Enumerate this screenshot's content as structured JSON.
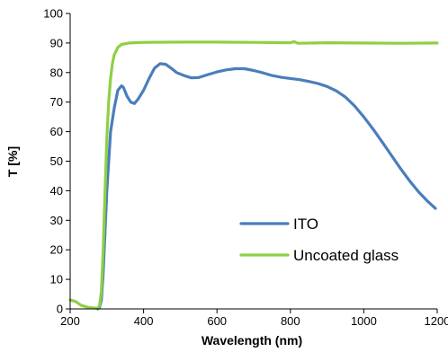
{
  "chart_data": {
    "type": "line",
    "xlabel": "Wavelength (nm)",
    "ylabel": "T [%]",
    "xlim": [
      200,
      1200
    ],
    "ylim": [
      0,
      100
    ],
    "xticks": [
      200,
      400,
      600,
      800,
      1000,
      1200
    ],
    "yticks": [
      0,
      10,
      20,
      30,
      40,
      50,
      60,
      70,
      80,
      90,
      100
    ],
    "xtick_labels": [
      "200",
      "400",
      "600",
      "800",
      "1000",
      "1200"
    ],
    "ytick_labels": [
      "0",
      "10",
      "20",
      "30",
      "40",
      "50",
      "60",
      "70",
      "80",
      "90",
      "100"
    ],
    "grid": false,
    "legend_position": "lower-right",
    "series": [
      {
        "name": "ITO",
        "color": "#4a7ebb",
        "points": [
          [
            275,
            0
          ],
          [
            280,
            0.5
          ],
          [
            285,
            3
          ],
          [
            290,
            12
          ],
          [
            300,
            40
          ],
          [
            310,
            60
          ],
          [
            320,
            68
          ],
          [
            330,
            74
          ],
          [
            340,
            75.5
          ],
          [
            345,
            75
          ],
          [
            355,
            72
          ],
          [
            365,
            70
          ],
          [
            375,
            69.5
          ],
          [
            385,
            71
          ],
          [
            400,
            74
          ],
          [
            415,
            78
          ],
          [
            430,
            81.5
          ],
          [
            445,
            83
          ],
          [
            460,
            82.8
          ],
          [
            475,
            81.5
          ],
          [
            490,
            80
          ],
          [
            510,
            79
          ],
          [
            530,
            78.2
          ],
          [
            550,
            78.3
          ],
          [
            575,
            79.3
          ],
          [
            600,
            80.2
          ],
          [
            625,
            80.9
          ],
          [
            650,
            81.3
          ],
          [
            675,
            81.3
          ],
          [
            700,
            80.7
          ],
          [
            725,
            79.9
          ],
          [
            750,
            79
          ],
          [
            775,
            78.4
          ],
          [
            800,
            78
          ],
          [
            825,
            77.6
          ],
          [
            850,
            77
          ],
          [
            875,
            76.3
          ],
          [
            900,
            75.3
          ],
          [
            925,
            73.8
          ],
          [
            950,
            71.7
          ],
          [
            975,
            68.7
          ],
          [
            1000,
            65
          ],
          [
            1025,
            60.9
          ],
          [
            1050,
            56.5
          ],
          [
            1075,
            52
          ],
          [
            1100,
            47.5
          ],
          [
            1125,
            43.3
          ],
          [
            1150,
            39.5
          ],
          [
            1175,
            36.3
          ],
          [
            1195,
            34
          ]
        ]
      },
      {
        "name": "Uncoated glass",
        "color": "#8ed044",
        "points": [
          [
            200,
            3
          ],
          [
            215,
            2.5
          ],
          [
            230,
            1.2
          ],
          [
            250,
            0.5
          ],
          [
            265,
            0.3
          ],
          [
            275,
            0.2
          ],
          [
            280,
            1
          ],
          [
            285,
            6
          ],
          [
            290,
            20
          ],
          [
            295,
            40
          ],
          [
            300,
            58
          ],
          [
            305,
            70
          ],
          [
            310,
            78
          ],
          [
            315,
            83
          ],
          [
            320,
            86
          ],
          [
            330,
            88.5
          ],
          [
            340,
            89.5
          ],
          [
            360,
            90
          ],
          [
            400,
            90.2
          ],
          [
            500,
            90.3
          ],
          [
            600,
            90.3
          ],
          [
            700,
            90.2
          ],
          [
            800,
            90.1
          ],
          [
            810,
            90.5
          ],
          [
            820,
            89.9
          ],
          [
            900,
            90.1
          ],
          [
            1000,
            90
          ],
          [
            1100,
            89.9
          ],
          [
            1200,
            90
          ]
        ]
      }
    ]
  }
}
